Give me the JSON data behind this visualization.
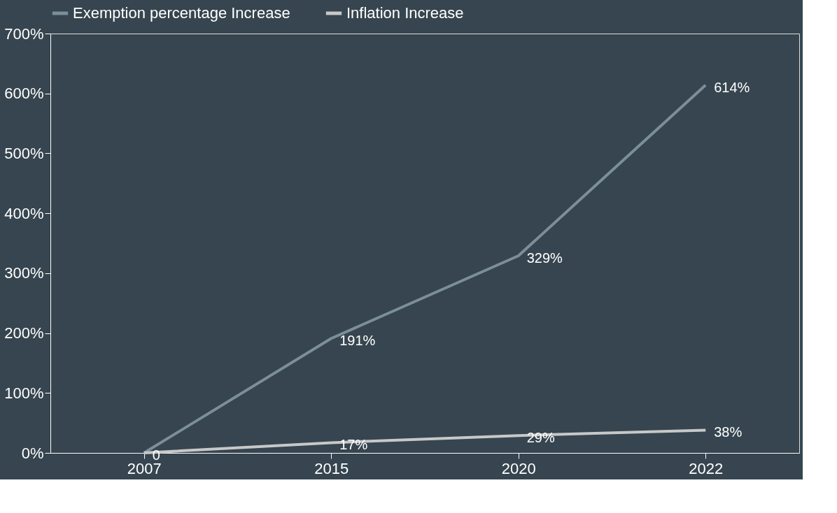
{
  "chart_data": {
    "type": "line",
    "categories": [
      "2007",
      "2015",
      "2020",
      "2022"
    ],
    "series": [
      {
        "name": "Exemption percentage Increase",
        "color": "#7b8f99",
        "values": [
          0,
          191,
          329,
          614
        ],
        "value_labels": [
          null,
          "191%",
          "329%",
          "614%"
        ]
      },
      {
        "name": "Inflation Increase",
        "color": "#c8c8c8",
        "values": [
          0,
          17,
          29,
          38
        ],
        "value_labels": [
          "0",
          "17%",
          "29%",
          "38%"
        ]
      }
    ],
    "ylim": [
      0,
      700
    ],
    "yticks": [
      {
        "value": 0,
        "label": "0%"
      },
      {
        "value": 100,
        "label": "100%"
      },
      {
        "value": 200,
        "label": "200%"
      },
      {
        "value": 300,
        "label": "300%"
      },
      {
        "value": 400,
        "label": "400%"
      },
      {
        "value": 500,
        "label": "500%"
      },
      {
        "value": 600,
        "label": "600%"
      },
      {
        "value": 700,
        "label": "700%"
      }
    ],
    "grid": false,
    "legend": "top",
    "marker": "none",
    "line_style": "solid"
  }
}
